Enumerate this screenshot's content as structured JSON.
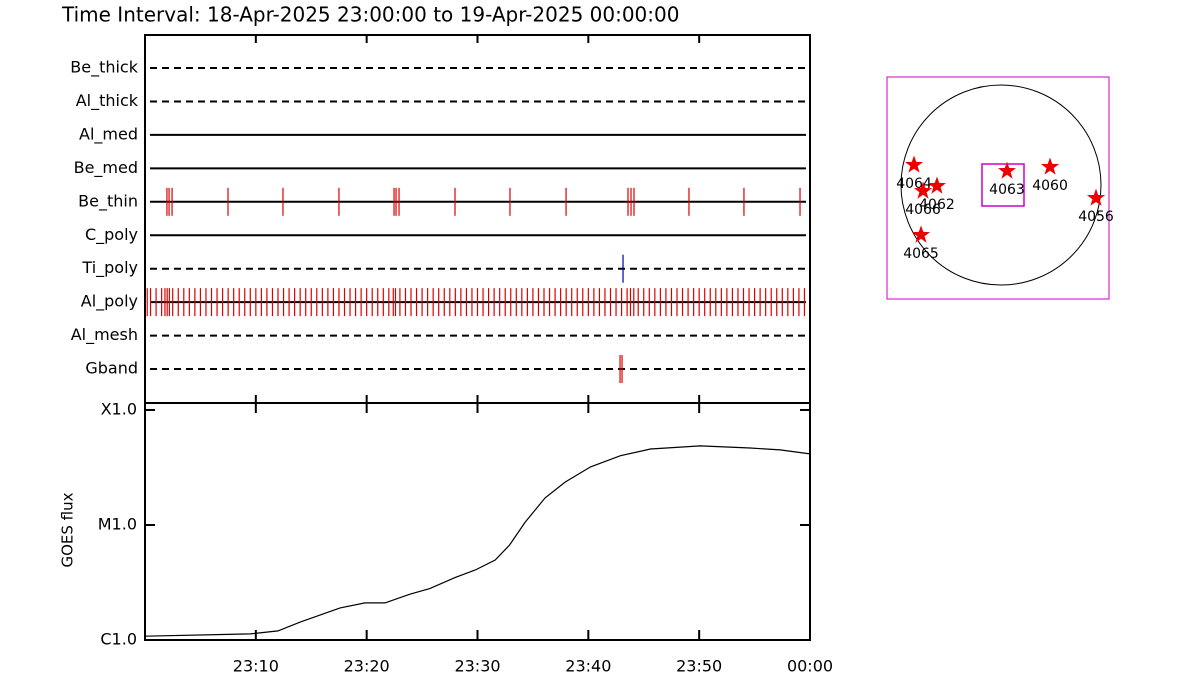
{
  "chart_data": [
    {
      "type": "event",
      "title": "Time Interval: 18-Apr-2025 23:00:00 to 19-Apr-2025 00:00:00",
      "xlim": [
        0,
        60
      ],
      "xticks": [
        0,
        10,
        20,
        30,
        40,
        50,
        60
      ],
      "series": [
        {
          "name": "Be_thick",
          "style": "dashed",
          "color": "#dd0000",
          "values": []
        },
        {
          "name": "Al_thick",
          "style": "dashed",
          "color": "#dd0000",
          "values": []
        },
        {
          "name": "Al_med",
          "style": "solid",
          "color": "#dd0000",
          "values": []
        },
        {
          "name": "Be_med",
          "style": "solid",
          "color": "#dd0000",
          "values": []
        },
        {
          "name": "Be_thin",
          "style": "solid",
          "color": "#dd0000",
          "values": [
            1.98,
            2.17,
            2.44,
            7.49,
            12.45,
            17.5,
            22.47,
            22.65,
            22.92,
            27.97,
            32.93,
            37.99,
            43.58,
            43.85,
            44.12,
            49.08,
            54.04,
            59.1
          ]
        },
        {
          "name": "C_poly",
          "style": "solid",
          "color": "#dd0000",
          "values": []
        },
        {
          "name": "Ti_poly",
          "style": "dashed",
          "color": "#0000aa",
          "values": [
            43.13
          ]
        },
        {
          "name": "Al_poly",
          "style": "solid",
          "color": "#dd0000",
          "values": [
            0.2,
            0.5,
            1,
            1.5,
            1.8,
            2,
            2.2,
            2.5,
            3,
            3.5,
            4,
            4.5,
            5,
            5.5,
            6,
            6.5,
            7,
            7.5,
            8,
            8.5,
            9,
            9.5,
            10,
            10.5,
            11,
            11.5,
            12,
            12.5,
            13,
            13.5,
            14,
            14.5,
            15,
            15.5,
            16,
            16.5,
            17,
            17.5,
            18,
            18.5,
            19,
            19.5,
            20,
            20.5,
            21,
            21.5,
            22,
            22.4,
            22.6,
            23,
            23.5,
            24,
            24.5,
            25,
            25.5,
            26,
            26.5,
            27,
            27.5,
            28,
            28.5,
            29,
            29.5,
            30,
            30.5,
            31,
            31.5,
            32,
            32.5,
            33,
            33.5,
            34,
            34.5,
            35,
            35.5,
            36,
            36.5,
            37,
            37.5,
            38,
            38.5,
            39,
            39.5,
            40,
            40.5,
            41,
            41.5,
            42,
            42.5,
            43,
            43.5,
            43.8,
            44.1,
            44.5,
            45,
            45.5,
            46,
            46.5,
            47,
            47.5,
            48,
            48.5,
            49,
            49.5,
            50,
            50.5,
            51,
            51.5,
            52,
            52.5,
            53,
            53.5,
            54,
            54.5,
            55,
            55.5,
            56,
            56.5,
            57,
            57.5,
            58,
            58.5,
            59,
            59.5
          ]
        },
        {
          "name": "Al_mesh",
          "style": "dashed",
          "color": "#dd0000",
          "values": []
        },
        {
          "name": "Gband",
          "style": "dashed",
          "color": "#dd0000",
          "values": [
            42.86,
            43.04
          ]
        }
      ]
    },
    {
      "type": "line",
      "ylabel": "GOES flux",
      "log_y": true,
      "color": "#000000",
      "x": [
        0,
        9.5,
        12,
        14,
        17.6,
        19.85,
        21.65,
        23.9,
        25.7,
        28,
        29.8,
        31.6,
        32.9,
        34.3,
        36.1,
        37.9,
        40.2,
        42.9,
        45.6,
        50.1,
        54.6,
        57.3,
        60
      ],
      "values": [
        1.08e-06,
        1.13e-06,
        1.2e-06,
        1.43e-06,
        1.9e-06,
        2.1e-06,
        2.1e-06,
        2.5e-06,
        2.8e-06,
        3.5e-06,
        4.06e-06,
        4.96e-06,
        6.7e-06,
        1.06e-05,
        1.72e-05,
        2.36e-05,
        3.2e-05,
        4e-05,
        4.58e-05,
        4.87e-05,
        4.67e-05,
        4.5e-05,
        4.15e-05
      ],
      "xlim": [
        0,
        60
      ],
      "xticks": [
        {
          "value": 10,
          "label": "23:10"
        },
        {
          "value": 20,
          "label": "23:20"
        },
        {
          "value": 30,
          "label": "23:30"
        },
        {
          "value": 40,
          "label": "23:40"
        },
        {
          "value": 50,
          "label": "23:50"
        },
        {
          "value": 60,
          "label": "00:00"
        }
      ],
      "ylim": [
        1e-06,
        0.000115
      ],
      "yticks": [
        {
          "value": 1e-06,
          "label": "C1.0"
        },
        {
          "value": 1e-05,
          "label": "M1.0"
        },
        {
          "value": 0.0001,
          "label": "X1.0"
        }
      ]
    },
    {
      "type": "scatter",
      "color": "#ee0000",
      "labels": [
        "4064",
        "4066",
        "4062",
        "4063",
        "4060",
        "4056",
        "4065"
      ],
      "x": [
        -802,
        -716,
        -583,
        86,
        497,
        936,
        -735
      ],
      "y": [
        220,
        -29,
        19,
        162,
        201,
        -96,
        -449
      ],
      "xlim": [
        -1060,
        1060
      ],
      "ylim": [
        -1060,
        1060
      ]
    }
  ]
}
